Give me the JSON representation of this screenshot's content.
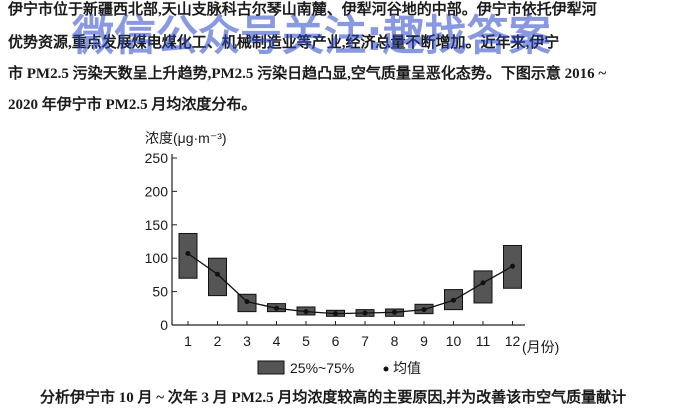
{
  "paragraph": [
    "伊宁市位于新疆西北部,天山支脉科古尔琴山南麓、伊犁河谷地的中部。伊宁市依托伊犁河",
    "优势资源,重点发展煤电煤化工、机械制造业等产业,经济总量不断增加。近年来,伊宁",
    "市 PM2.5 污染天数呈上升趋势,PM2.5 污染日趋凸显,空气质量呈恶化态势。下图示意 2016 ~",
    "2020 年伊宁市 PM2.5 月均浓度分布。"
  ],
  "watermark": "微信公众号关注:趣找答案",
  "question": "分析伊宁市 10 月 ~ 次年 3 月 PM2.5 月均浓度较高的主要原因,并为改善该市空气质量献计",
  "chart_data": {
    "type": "box",
    "y_label": "浓度(μg·m⁻³)",
    "x_label": "(月份)",
    "categories": [
      "1",
      "2",
      "3",
      "4",
      "5",
      "6",
      "7",
      "8",
      "9",
      "10",
      "11",
      "12"
    ],
    "ylim": [
      0,
      250
    ],
    "yticks": [
      0,
      50,
      100,
      150,
      200,
      250
    ],
    "series": [
      {
        "name": "25%~75%",
        "color": "#555555",
        "low": [
          70,
          44,
          20,
          20,
          15,
          13,
          13,
          13,
          17,
          23,
          33,
          55
        ],
        "high": [
          137,
          100,
          46,
          32,
          27,
          22,
          23,
          24,
          31,
          53,
          81,
          119
        ]
      },
      {
        "name": "均值",
        "color": "#111111",
        "values": [
          107,
          76,
          35,
          25,
          20,
          17,
          18,
          19,
          23,
          37,
          63,
          88
        ]
      }
    ]
  }
}
